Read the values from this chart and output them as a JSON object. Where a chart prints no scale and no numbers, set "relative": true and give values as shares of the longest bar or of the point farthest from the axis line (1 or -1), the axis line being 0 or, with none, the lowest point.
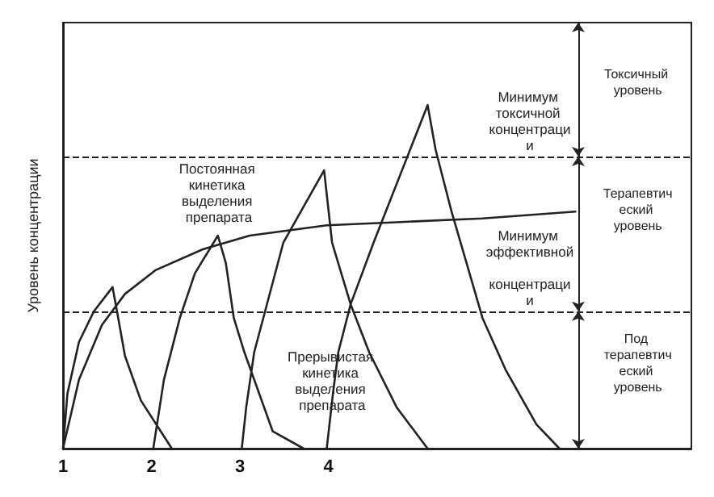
{
  "chart_data": {
    "type": "line",
    "relative": true,
    "ylabel": "Уровень концентрации",
    "xlim": [
      1,
      8.1
    ],
    "xticks": [
      1,
      2,
      3,
      4
    ],
    "grid": false,
    "marker": "none",
    "line_style": "solid",
    "series": [
      {
        "color": "#222222",
        "x": [
          1,
          1.18,
          1.44,
          1.7,
          2.05,
          2.58,
          3.11,
          3.98,
          4.86,
          5.74,
          6.79
        ],
        "values": [
          0,
          0.2,
          0.36,
          0.45,
          0.52,
          0.58,
          0.62,
          0.65,
          0.66,
          0.67,
          0.69
        ]
      },
      {
        "color": "#222222",
        "x": [
          1,
          1.05,
          1.18,
          1.35,
          1.56,
          1.61,
          1.7,
          1.88,
          2.23,
          null,
          2.02,
          2.14,
          2.32,
          2.49,
          2.75,
          2.84,
          2.93,
          3.05,
          3.37,
          3.72,
          null,
          3.02,
          3.07,
          3.16,
          3.49,
          3.95,
          4.04,
          4.25,
          4.46,
          4.77,
          5.12,
          null,
          3.98,
          4.05,
          4.11,
          4.25,
          4.51,
          5.12,
          5.21,
          5.39,
          5.56,
          5.74,
          6.0,
          6.35,
          6.61
        ],
        "values": [
          0,
          0.16,
          0.31,
          0.4,
          0.47,
          0.4,
          0.27,
          0.14,
          0,
          null,
          0,
          0.2,
          0.38,
          0.51,
          0.62,
          0.54,
          0.38,
          0.28,
          0.05,
          0,
          null,
          0,
          0.12,
          0.28,
          0.6,
          0.81,
          0.6,
          0.42,
          0.28,
          0.12,
          0,
          null,
          0,
          0.16,
          0.28,
          0.42,
          0.6,
          1.0,
          0.87,
          0.69,
          0.54,
          0.38,
          0.23,
          0.07,
          0
        ]
      }
    ],
    "ref_lines": [
      {
        "axis": "y",
        "value": 0.85,
        "label": "Минимум токсичной концентрации",
        "line_style": "dashed"
      },
      {
        "axis": "y",
        "value": 0.4,
        "label": "Минимум эффективной концентрации",
        "line_style": "dashed"
      }
    ],
    "annotations": [
      "Постоянная кинетика выделения препарата",
      "Прерывистая кинетика выделения препарата",
      "Токсичный уровень",
      "Терапевтический уровень",
      "Под терапевтический уровень"
    ]
  }
}
